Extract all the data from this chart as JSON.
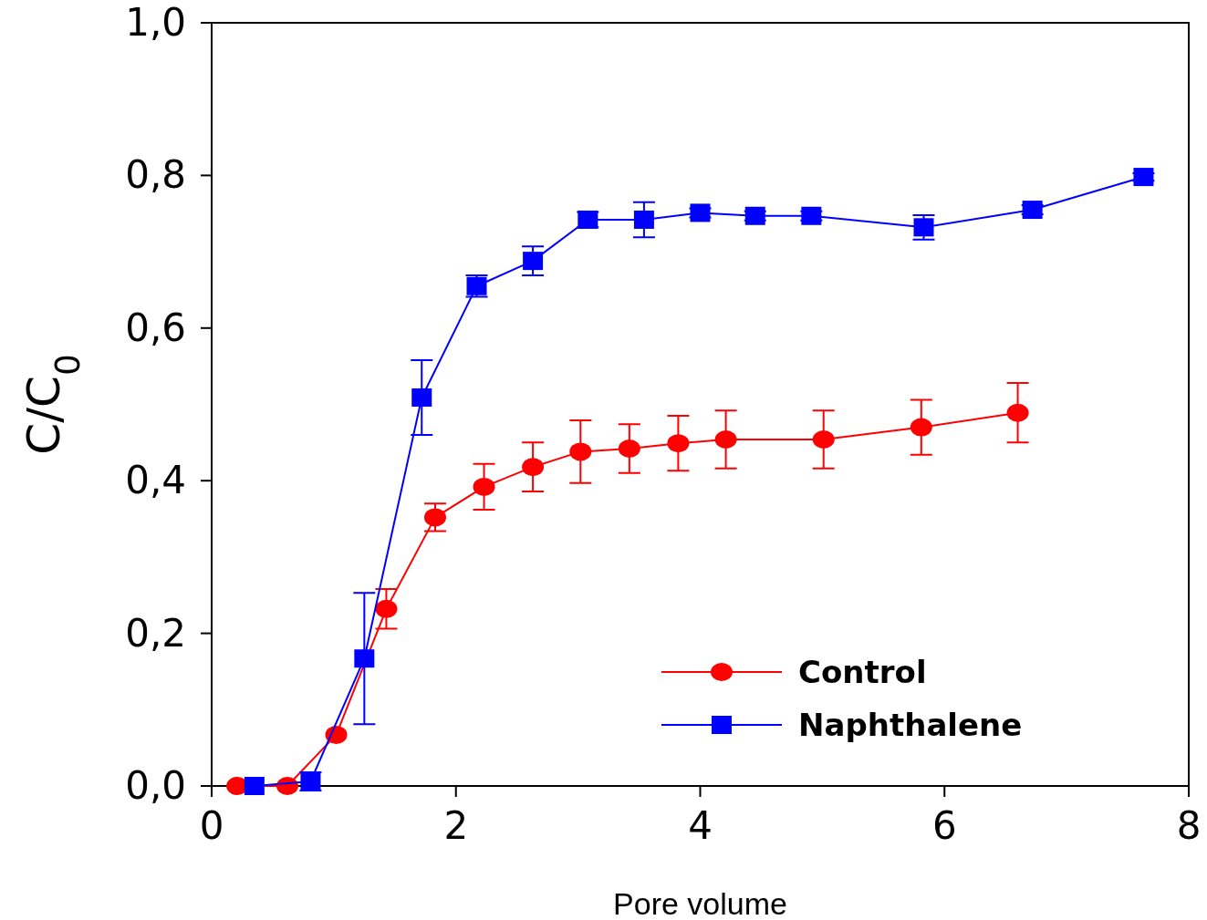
{
  "chart_data": {
    "type": "line",
    "xlabel": "Pore volume",
    "ylabel": "C/C$_{0}$",
    "xlim": [
      0,
      8
    ],
    "xticks": [
      0,
      2,
      4,
      6,
      8
    ],
    "ylim": [
      0,
      1
    ],
    "yticks": [
      {
        "value": 0,
        "label": "0,0"
      },
      {
        "value": 0.2,
        "label": "0,2"
      },
      {
        "value": 0.4,
        "label": "0,4"
      },
      {
        "value": 0.6,
        "label": "0,6"
      },
      {
        "value": 0.8,
        "label": "0,8"
      },
      {
        "value": 1,
        "label": "1,0"
      }
    ],
    "grid": false,
    "legend": "bottom right",
    "line_style": "solid",
    "series": [
      {
        "name": "Control",
        "color": "#ff0000",
        "marker": "circle",
        "x": [
          0.21,
          0.62,
          1.02,
          1.43,
          1.83,
          2.23,
          2.63,
          3.02,
          3.42,
          3.82,
          4.21,
          5.01,
          5.81,
          6.6
        ],
        "values": [
          0.0,
          0.0,
          0.067,
          0.232,
          0.352,
          0.392,
          0.418,
          0.438,
          0.442,
          0.449,
          0.454,
          0.454,
          0.47,
          0.489
        ],
        "errors": [
          null,
          null,
          null,
          0.026,
          0.018,
          0.03,
          0.032,
          0.041,
          0.032,
          0.036,
          0.038,
          0.038,
          0.036,
          0.039
        ]
      },
      {
        "name": "Naphthalene",
        "color": "#0000ff",
        "marker": "square",
        "x": [
          0.35,
          0.81,
          1.25,
          1.72,
          2.17,
          2.63,
          3.08,
          3.54,
          4.0,
          4.45,
          4.91,
          5.83,
          6.72,
          7.63
        ],
        "values": [
          0.0,
          0.006,
          0.167,
          0.509,
          0.655,
          0.688,
          0.742,
          0.742,
          0.751,
          0.747,
          0.747,
          0.732,
          0.755,
          0.798
        ],
        "errors": [
          null,
          0.012,
          0.086,
          0.049,
          0.014,
          0.019,
          0.01,
          0.023,
          0.006,
          0.006,
          0.006,
          0.016,
          0.006,
          0.005
        ]
      }
    ]
  }
}
